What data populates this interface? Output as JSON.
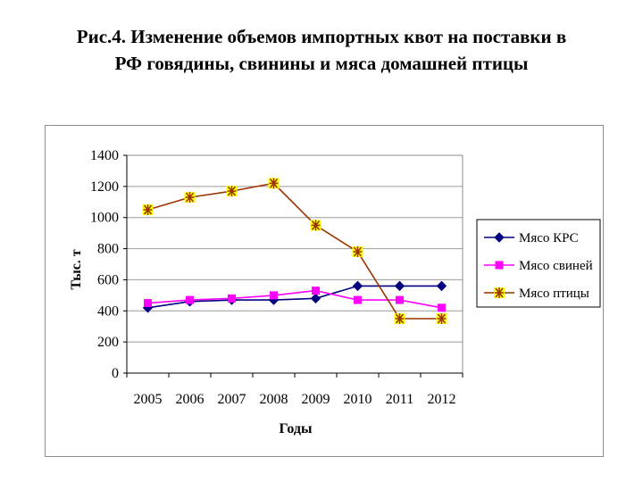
{
  "title_line1": "Рис.4. Изменение объемов импортных квот на поставки в",
  "title_line2": "РФ говядины, свинины и мяса домашней птицы",
  "chart_data": {
    "type": "line",
    "title": "Рис.4. Изменение объемов импортных квот на поставки в РФ говядины, свинины и мяса домашней птицы",
    "xlabel": "Годы",
    "ylabel": "Тыс. т",
    "categories": [
      "2005",
      "2006",
      "2007",
      "2008",
      "2009",
      "2010",
      "2011",
      "2012"
    ],
    "ylim": [
      0,
      1400
    ],
    "yticks": [
      0,
      200,
      400,
      600,
      800,
      1000,
      1200,
      1400
    ],
    "grid": true,
    "legend_position": "right",
    "series": [
      {
        "name": "Мясо КРС",
        "color": "#000080",
        "marker": "diamond",
        "values": [
          420,
          460,
          470,
          470,
          480,
          560,
          560,
          560
        ]
      },
      {
        "name": "Мясо свиней",
        "color": "#ff00ff",
        "marker": "square",
        "values": [
          450,
          470,
          480,
          500,
          530,
          470,
          470,
          420
        ]
      },
      {
        "name": "Мясо птицы",
        "color": "#993300",
        "marker": "asterisk-box",
        "marker_fill": "#ffff00",
        "values": [
          1050,
          1130,
          1170,
          1220,
          950,
          780,
          350,
          350
        ]
      }
    ]
  }
}
